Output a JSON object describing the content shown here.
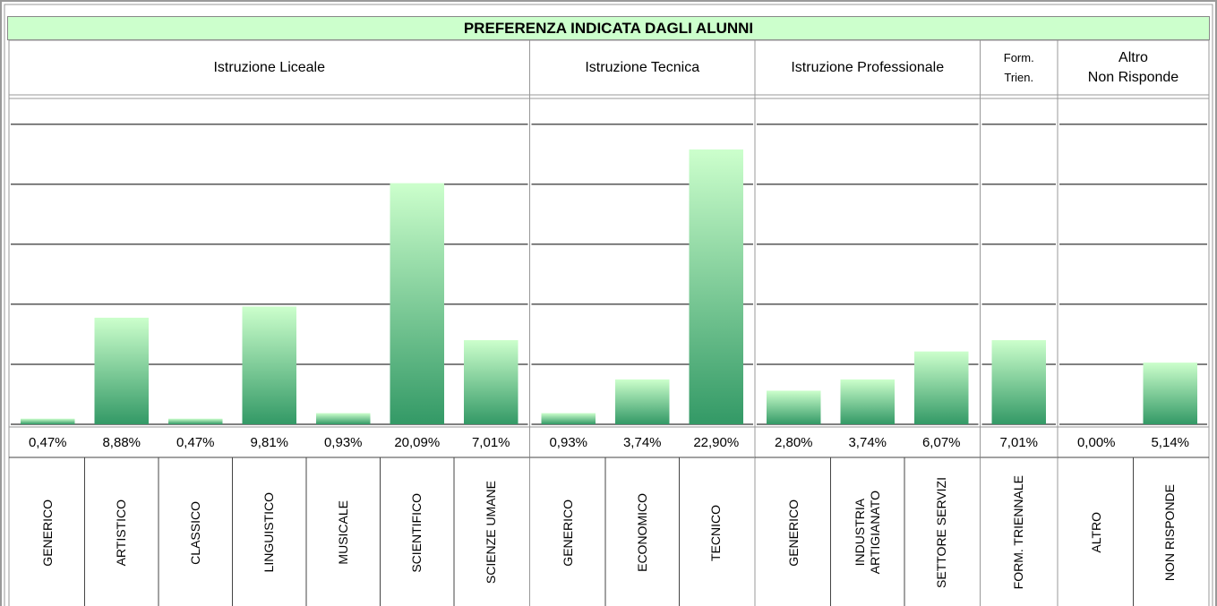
{
  "chart_data": {
    "type": "bar",
    "title": "PREFERENZA INDICATA DAGLI ALUNNI",
    "groups": [
      {
        "label": "Istruzione Liceale",
        "span": 7
      },
      {
        "label": "Istruzione Tecnica",
        "span": 3
      },
      {
        "label": "Istruzione Professionale",
        "span": 3
      },
      {
        "label": "Form.\nTrien.",
        "span": 1
      },
      {
        "label": "Altro\nNon Risponde",
        "span": 2
      }
    ],
    "categories": [
      "GENERICO",
      "ARTISTICO",
      "CLASSICO",
      "LINGUISTICO",
      "MUSICALE",
      "SCIENTIFICO",
      "SCIENZE UMANE",
      "GENERICO",
      "ECONOMICO",
      "TECNICO",
      "GENERICO",
      "INDUSTRIA\nARTIGIANATO",
      "SETTORE SERVIZI",
      "FORM. TRIENNALE",
      "ALTRO",
      "NON RISPONDE"
    ],
    "values": [
      0.47,
      8.88,
      0.47,
      9.81,
      0.93,
      20.09,
      7.01,
      0.93,
      3.74,
      22.9,
      2.8,
      3.74,
      6.07,
      7.01,
      0.0,
      5.14
    ],
    "value_labels": [
      "0,47%",
      "8,88%",
      "0,47%",
      "9,81%",
      "0,93%",
      "20,09%",
      "7,01%",
      "0,93%",
      "3,74%",
      "22,90%",
      "2,80%",
      "3,74%",
      "6,07%",
      "7,01%",
      "0,00%",
      "5,14%"
    ],
    "color": [
      "#ccffcc",
      "#339966"
    ],
    "ylim": [
      0,
      27
    ],
    "yticks": [
      0,
      5,
      10,
      15,
      20,
      25
    ],
    "grid": true
  }
}
